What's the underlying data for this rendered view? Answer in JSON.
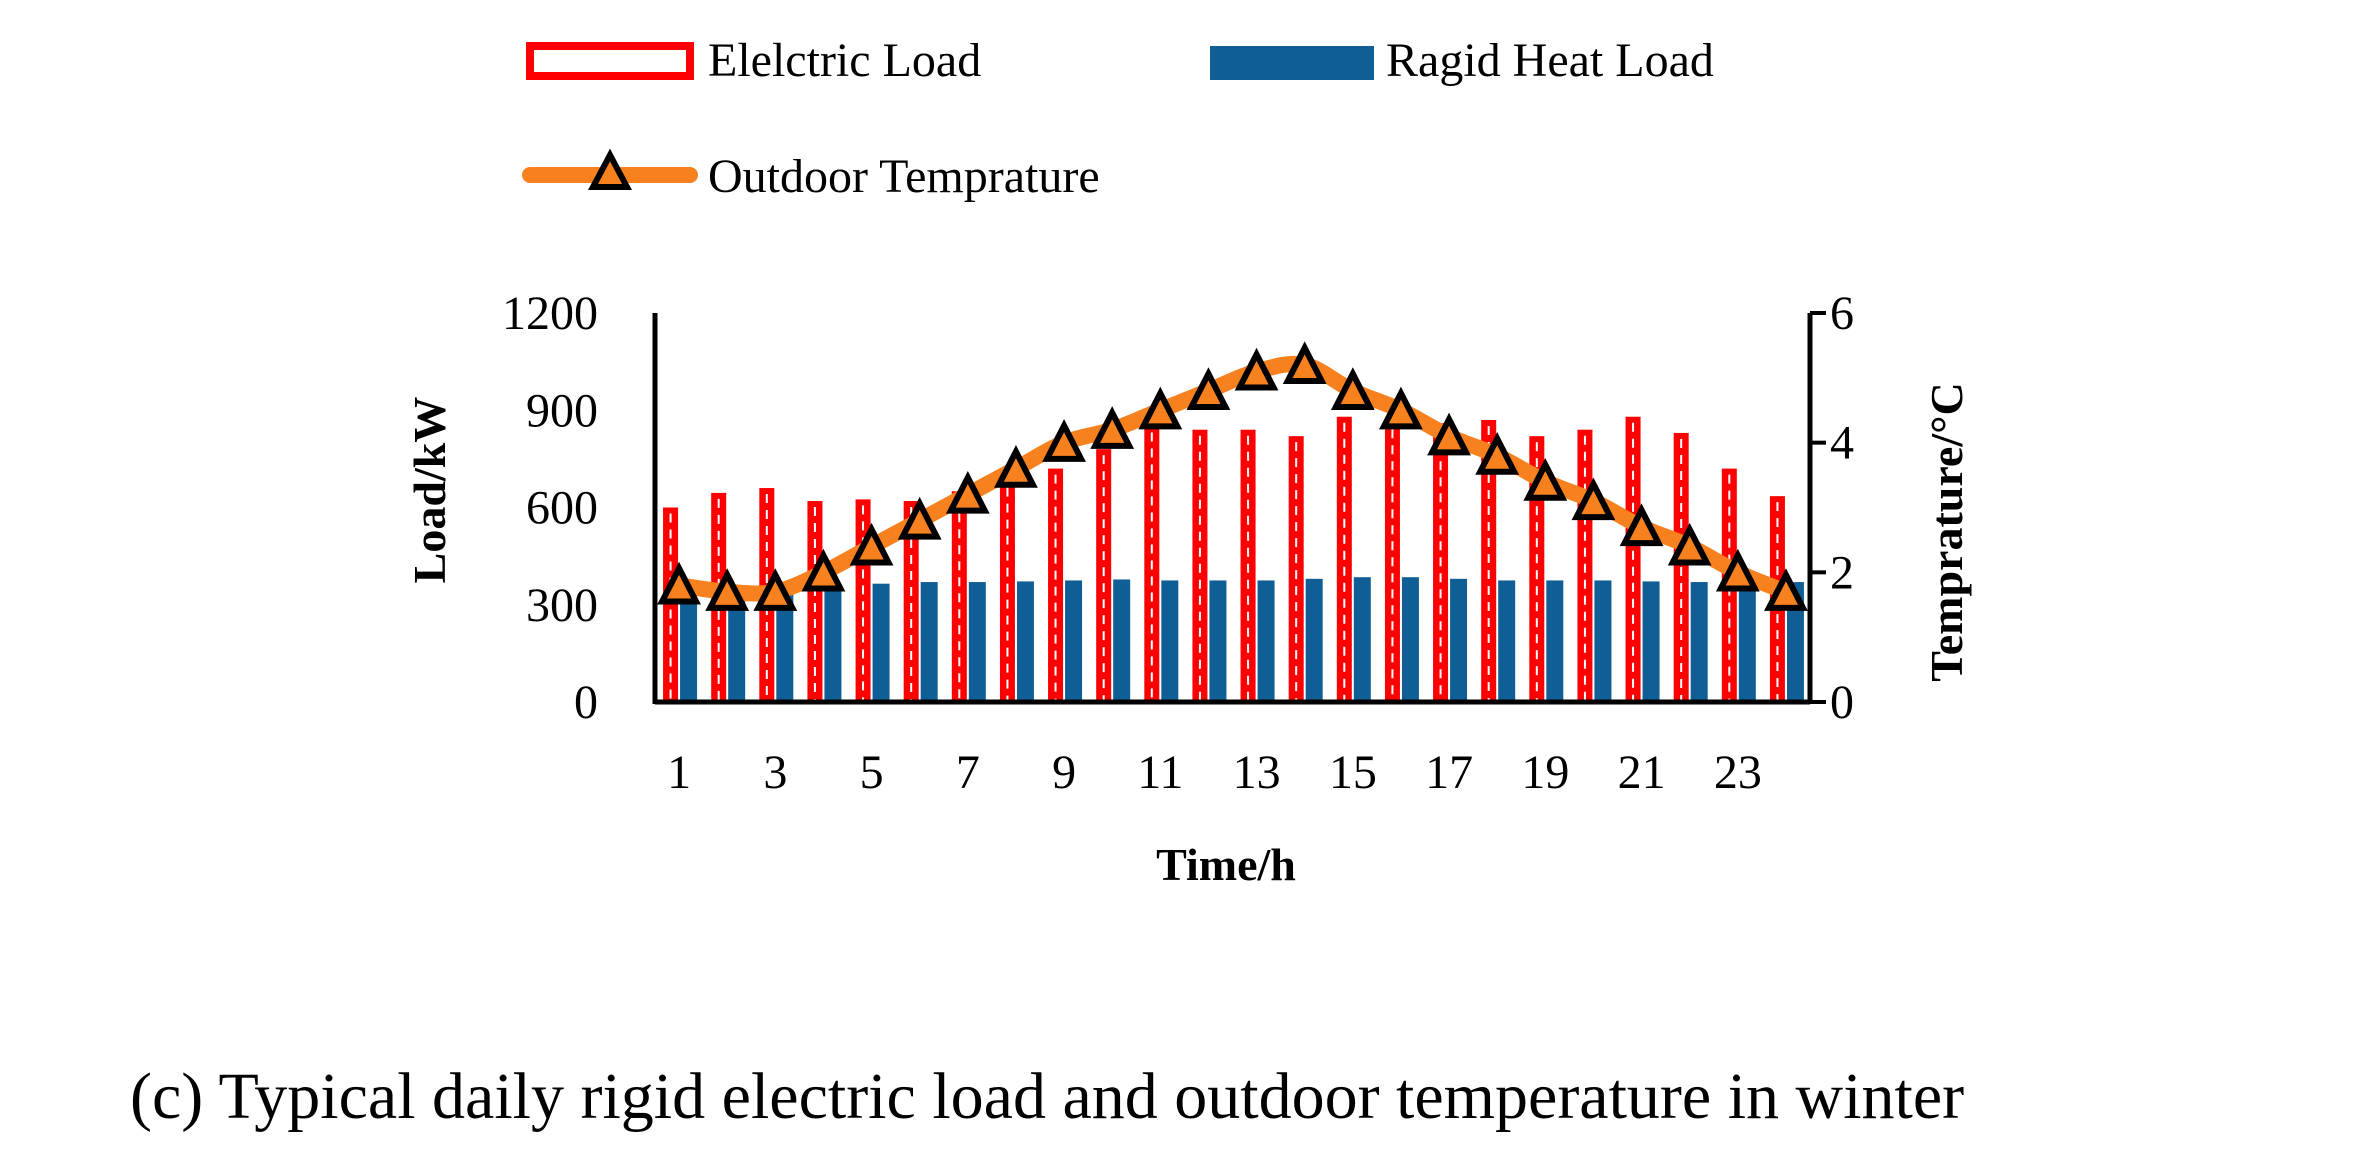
{
  "chart_data": {
    "type": "bar+line",
    "caption": "(c) Typical daily rigid electric load and outdoor temperature in winter",
    "x": [
      1,
      2,
      3,
      4,
      5,
      6,
      7,
      8,
      9,
      10,
      11,
      12,
      13,
      14,
      15,
      16,
      17,
      18,
      19,
      20,
      21,
      22,
      23,
      24
    ],
    "x_tick_labels": [
      "1",
      "3",
      "5",
      "7",
      "9",
      "11",
      "13",
      "15",
      "17",
      "19",
      "21",
      "23"
    ],
    "xlabel": "Time/h",
    "ylabel_left": "Load/kW",
    "ylabel_right": "Temprature/°C",
    "ylim_left": [
      0,
      1200
    ],
    "ylim_right": [
      0,
      6
    ],
    "y_ticks_left": [
      "0",
      "300",
      "600",
      "900",
      "1200"
    ],
    "y_ticks_right": [
      "0",
      "2",
      "4",
      "6"
    ],
    "legend": {
      "electric": "Elelctric Load",
      "heat": "Ragid Heat Load",
      "temperature": "Outdoor Temprature"
    },
    "series": [
      {
        "name": "Elelctric Load",
        "axis": "left",
        "kind": "bar",
        "values": [
          600,
          645,
          660,
          620,
          625,
          620,
          650,
          680,
          720,
          780,
          850,
          840,
          840,
          820,
          880,
          860,
          860,
          870,
          820,
          840,
          880,
          830,
          720,
          635
        ]
      },
      {
        "name": "Ragid Heat Load",
        "axis": "left",
        "kind": "bar",
        "values": [
          340,
          355,
          355,
          360,
          365,
          370,
          370,
          372,
          375,
          378,
          375,
          375,
          375,
          380,
          385,
          385,
          380,
          375,
          375,
          375,
          372,
          370,
          370,
          370
        ]
      },
      {
        "name": "Outdoor Temprature",
        "axis": "right",
        "kind": "line",
        "values": [
          1.8,
          1.7,
          1.7,
          2.0,
          2.4,
          2.8,
          3.2,
          3.6,
          4.0,
          4.2,
          4.5,
          4.8,
          5.1,
          5.2,
          4.8,
          4.5,
          4.1,
          3.8,
          3.4,
          3.1,
          2.7,
          2.4,
          2.0,
          1.7
        ]
      }
    ],
    "colors": {
      "electric": "#ff0000",
      "heat": "#0f5f96",
      "temperature_line": "#f7811e",
      "marker_fill": "#f7811e",
      "marker_stroke": "#000000"
    }
  }
}
